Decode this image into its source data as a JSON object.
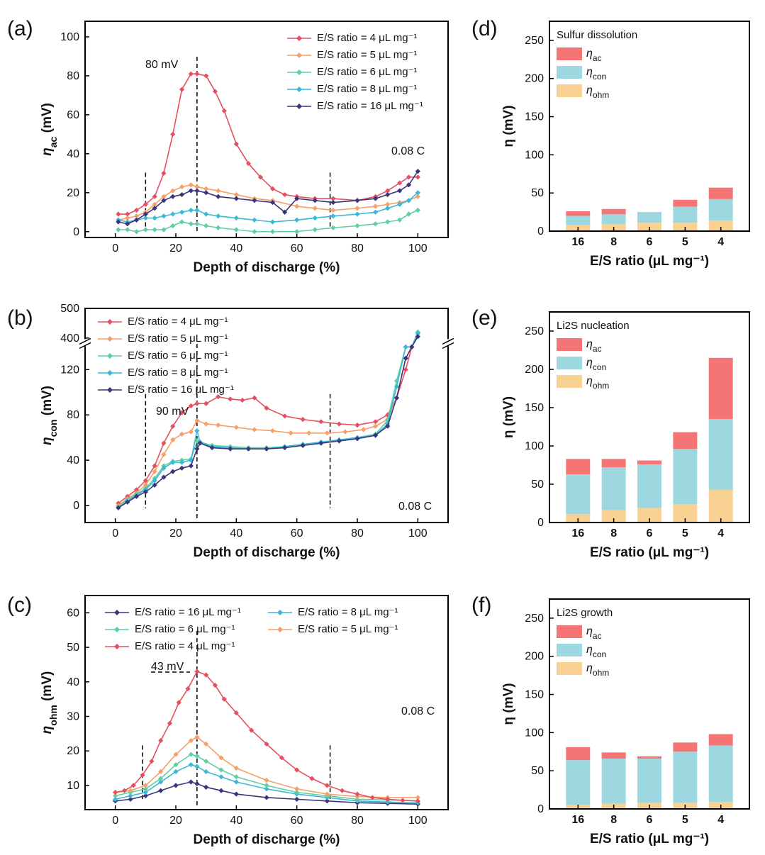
{
  "figure": {
    "colors": {
      "r4": "#e5505f",
      "r5": "#f5a06a",
      "r6": "#5ecfa3",
      "r8": "#3cb8d6",
      "r16": "#3b3579",
      "eta_ac": "#f57474",
      "eta_con": "#9dd7df",
      "eta_ohm": "#f8d193"
    }
  },
  "chart_data": [
    {
      "id": "a",
      "panel_label": "(a)",
      "type": "line",
      "xlabel": "Depth of discharge (%)",
      "ylabel": "η_ac (mV)",
      "ylabel_main": "η",
      "ylabel_sub": "ac",
      "ylabel_unit": " (mV)",
      "xlim": [
        -10,
        110
      ],
      "ylim": [
        -3,
        108
      ],
      "xticks": [
        0,
        20,
        40,
        60,
        80,
        100
      ],
      "yticks": [
        0,
        20,
        40,
        60,
        80,
        100
      ],
      "annotations": [
        {
          "text": "80 mV"
        },
        {
          "text": "0.08 C"
        }
      ],
      "vlines": [
        10,
        27,
        71
      ],
      "legend": [
        "E/S ratio = 4 μL mg⁻¹",
        "E/S ratio = 5 μL mg⁻¹",
        "E/S ratio = 6 μL mg⁻¹",
        "E/S ratio = 8 μL mg⁻¹",
        "E/S ratio = 16 μL mg⁻¹"
      ],
      "series": [
        {
          "name": "E/S ratio = 4 μL mg⁻¹",
          "color": "#e5505f",
          "x": [
            1,
            4,
            7,
            10,
            13,
            16,
            19,
            22,
            25,
            27,
            30,
            33,
            36,
            40,
            44,
            48,
            52,
            56,
            60,
            66,
            72,
            80,
            86,
            90,
            94,
            97,
            100
          ],
          "y": [
            9,
            9,
            11,
            14,
            18,
            30,
            50,
            73,
            81,
            81,
            80,
            72,
            62,
            45,
            35,
            28,
            22,
            19,
            18,
            17,
            17,
            16,
            18,
            21,
            25,
            28,
            28
          ]
        },
        {
          "name": "E/S ratio = 5 μL mg⁻¹",
          "color": "#f5a06a",
          "x": [
            1,
            4,
            7,
            10,
            13,
            16,
            19,
            22,
            25,
            27,
            30,
            34,
            40,
            46,
            52,
            60,
            66,
            72,
            80,
            86,
            90,
            94,
            97,
            100
          ],
          "y": [
            6,
            7,
            8,
            10,
            14,
            18,
            21,
            23,
            24,
            23,
            22,
            21,
            19,
            17,
            16,
            13,
            12,
            11,
            12,
            13,
            14,
            15,
            16,
            18
          ]
        },
        {
          "name": "E/S ratio = 6 μL mg⁻¹",
          "color": "#5ecfa3",
          "x": [
            1,
            4,
            7,
            10,
            13,
            16,
            19,
            22,
            25,
            27,
            30,
            34,
            40,
            46,
            52,
            60,
            66,
            72,
            80,
            86,
            90,
            94,
            97,
            100
          ],
          "y": [
            1,
            1,
            0,
            1,
            1,
            1,
            3,
            5,
            4,
            4,
            3,
            2,
            1,
            0,
            0,
            0,
            1,
            2,
            3,
            4,
            5,
            6,
            9,
            11
          ]
        },
        {
          "name": "E/S ratio = 8 μL mg⁻¹",
          "color": "#3cb8d6",
          "x": [
            1,
            4,
            7,
            10,
            13,
            16,
            19,
            22,
            25,
            27,
            30,
            34,
            40,
            46,
            52,
            60,
            66,
            72,
            80,
            86,
            90,
            94,
            97,
            100
          ],
          "y": [
            6,
            5,
            6,
            7,
            7,
            8,
            9,
            10,
            11,
            11,
            9,
            8,
            7,
            6,
            5,
            6,
            7,
            8,
            9,
            10,
            12,
            14,
            16,
            20
          ]
        },
        {
          "name": "E/S ratio = 16 μL mg⁻¹",
          "color": "#3b3579",
          "x": [
            1,
            4,
            7,
            10,
            13,
            16,
            19,
            22,
            25,
            27,
            30,
            34,
            40,
            46,
            52,
            56,
            60,
            66,
            72,
            80,
            86,
            90,
            94,
            97,
            100
          ],
          "y": [
            5,
            4,
            6,
            9,
            12,
            16,
            18,
            19,
            21,
            21,
            20,
            18,
            17,
            16,
            15,
            10,
            17,
            16,
            15,
            16,
            17,
            19,
            21,
            24,
            31
          ]
        }
      ]
    },
    {
      "id": "b",
      "panel_label": "(b)",
      "type": "line",
      "xlabel": "Depth of discharge (%)",
      "ylabel": "η_con (mV)",
      "ylabel_main": "η",
      "ylabel_sub": "con",
      "ylabel_unit": " (mV)",
      "xlim": [
        -10,
        110
      ],
      "ylim": [
        -15,
        500
      ],
      "axis_break": [
        140,
        370
      ],
      "xticks": [
        0,
        20,
        40,
        60,
        80,
        100
      ],
      "yticks": [
        0,
        40,
        80,
        120,
        400,
        500
      ],
      "annotations": [
        {
          "text": "90 mV"
        },
        {
          "text": "0.08 C"
        }
      ],
      "vlines": [
        10,
        27,
        71
      ],
      "legend": [
        "E/S ratio = 4 μL mg⁻¹",
        "E/S ratio = 5 μL mg⁻¹",
        "E/S ratio = 6 μL mg⁻¹",
        "E/S ratio = 8 μL mg⁻¹",
        "E/S ratio = 16 μL mg⁻¹"
      ],
      "series": [
        {
          "name": "E/S ratio = 4 μL mg⁻¹",
          "color": "#e5505f",
          "x": [
            1,
            4,
            7,
            10,
            13,
            16,
            19,
            22,
            25,
            27,
            30,
            34,
            38,
            42,
            46,
            50,
            56,
            62,
            68,
            74,
            80,
            86,
            90,
            93,
            96,
            98,
            100
          ],
          "y": [
            2,
            8,
            14,
            22,
            35,
            55,
            70,
            82,
            88,
            90,
            90,
            96,
            94,
            93,
            95,
            86,
            79,
            76,
            74,
            72,
            71,
            74,
            80,
            95,
            120,
            290,
            420
          ]
        },
        {
          "name": "E/S ratio = 5 μL mg⁻¹",
          "color": "#f5a06a",
          "x": [
            1,
            4,
            7,
            10,
            13,
            16,
            19,
            22,
            25,
            27,
            30,
            34,
            40,
            46,
            52,
            58,
            64,
            70,
            76,
            82,
            86,
            90,
            93,
            96,
            98,
            100
          ],
          "y": [
            0,
            6,
            11,
            18,
            30,
            45,
            58,
            63,
            65,
            75,
            72,
            71,
            69,
            67,
            66,
            64,
            64,
            64,
            65,
            67,
            70,
            76,
            95,
            130,
            300,
            420
          ]
        },
        {
          "name": "E/S ratio = 6 μL mg⁻¹",
          "color": "#5ecfa3",
          "x": [
            1,
            4,
            7,
            10,
            13,
            16,
            19,
            22,
            25,
            27,
            28,
            32,
            38,
            44,
            50,
            56,
            62,
            68,
            74,
            80,
            86,
            90,
            93,
            96,
            98,
            100
          ],
          "y": [
            -1,
            5,
            10,
            15,
            24,
            35,
            39,
            40,
            41,
            57,
            56,
            53,
            52,
            51,
            51,
            52,
            54,
            56,
            58,
            60,
            63,
            75,
            110,
            150,
            310,
            420
          ]
        },
        {
          "name": "E/S ratio = 8 μL mg⁻¹",
          "color": "#3cb8d6",
          "x": [
            1,
            4,
            7,
            10,
            13,
            16,
            19,
            22,
            25,
            27,
            28,
            32,
            38,
            44,
            50,
            56,
            62,
            68,
            74,
            80,
            86,
            90,
            93,
            96,
            98,
            100
          ],
          "y": [
            -2,
            4,
            9,
            14,
            22,
            33,
            38,
            38,
            40,
            66,
            56,
            52,
            51,
            50,
            50,
            52,
            54,
            56,
            58,
            60,
            62,
            72,
            105,
            140,
            300,
            415
          ]
        },
        {
          "name": "E/S ratio = 16 μL mg⁻¹",
          "color": "#3b3579",
          "x": [
            1,
            4,
            7,
            10,
            13,
            16,
            19,
            22,
            25,
            27,
            28,
            32,
            38,
            44,
            50,
            56,
            62,
            68,
            74,
            80,
            86,
            90,
            93,
            96,
            98,
            100
          ],
          "y": [
            -2,
            3,
            8,
            12,
            18,
            25,
            30,
            33,
            35,
            50,
            55,
            51,
            50,
            50,
            50,
            51,
            53,
            55,
            57,
            59,
            62,
            70,
            95,
            130,
            290,
            405
          ]
        }
      ]
    },
    {
      "id": "c",
      "panel_label": "(c)",
      "type": "line",
      "xlabel": "Depth of discharge (%)",
      "ylabel": "η_ohm (mV)",
      "ylabel_main": "η",
      "ylabel_sub": "ohm",
      "ylabel_unit": " (mV)",
      "xlim": [
        -10,
        110
      ],
      "ylim": [
        3,
        65
      ],
      "xticks": [
        0,
        20,
        40,
        60,
        80,
        100
      ],
      "yticks": [
        10,
        20,
        30,
        40,
        50,
        60
      ],
      "annotations": [
        {
          "text": "43 mV"
        },
        {
          "text": "0.08 C"
        }
      ],
      "vlines": [
        9,
        27,
        71
      ],
      "legend": [
        "E/S ratio = 16 μL mg⁻¹",
        "E/S ratio = 8 μL mg⁻¹",
        "E/S ratio = 6 μL mg⁻¹",
        "E/S ratio = 5 μL mg⁻¹",
        "E/S ratio = 4 μL mg⁻¹"
      ],
      "series": [
        {
          "name": "E/S ratio = 16 μL mg⁻¹",
          "color": "#3b3579",
          "x": [
            0,
            5,
            10,
            15,
            20,
            25,
            27,
            30,
            35,
            40,
            50,
            60,
            70,
            80,
            90,
            100
          ],
          "y": [
            5.5,
            6,
            7,
            8.5,
            10,
            11,
            10.5,
            9.5,
            8.5,
            7.5,
            6.5,
            6,
            5.5,
            5,
            4.8,
            4.6
          ]
        },
        {
          "name": "E/S ratio = 8 μL mg⁻¹",
          "color": "#3cb8d6",
          "x": [
            0,
            5,
            10,
            15,
            20,
            25,
            27,
            30,
            35,
            40,
            50,
            60,
            70,
            80,
            90,
            100
          ],
          "y": [
            6,
            7,
            8,
            11,
            14,
            16,
            15.5,
            14,
            12.5,
            11,
            9,
            7.5,
            6.5,
            5.5,
            5.2,
            5
          ]
        },
        {
          "name": "E/S ratio = 6 μL mg⁻¹",
          "color": "#5ecfa3",
          "x": [
            0,
            5,
            10,
            15,
            20,
            25,
            27,
            30,
            35,
            40,
            50,
            60,
            70,
            80,
            90,
            100
          ],
          "y": [
            7,
            8,
            9,
            12,
            16,
            19,
            18.5,
            17,
            14.5,
            12.5,
            10,
            8,
            7,
            6,
            5.8,
            5.5
          ]
        },
        {
          "name": "E/S ratio = 5 μL mg⁻¹",
          "color": "#f5a06a",
          "x": [
            0,
            5,
            10,
            15,
            20,
            25,
            27,
            30,
            35,
            40,
            50,
            60,
            70,
            80,
            90,
            100
          ],
          "y": [
            8,
            8.5,
            10,
            14,
            19,
            23,
            24,
            22,
            18,
            15,
            11.5,
            9,
            7.5,
            6.8,
            6.5,
            6.5
          ]
        },
        {
          "name": "E/S ratio = 4 μL mg⁻¹",
          "color": "#e5505f",
          "x": [
            0,
            3,
            6,
            9,
            12,
            15,
            18,
            21,
            24,
            27,
            30,
            33,
            36,
            40,
            45,
            50,
            55,
            60,
            65,
            70,
            75,
            80,
            85,
            90,
            95,
            100
          ],
          "y": [
            8,
            8.5,
            10,
            13,
            17,
            23,
            28,
            34,
            38,
            43,
            42,
            39,
            35,
            31,
            26,
            22,
            18,
            14.5,
            12,
            10,
            8.5,
            7.5,
            6.5,
            6,
            5.7,
            5.5
          ]
        }
      ]
    },
    {
      "id": "d",
      "panel_label": "(d)",
      "type": "bar",
      "stacked": true,
      "title": "Sulfur dissolution",
      "xlabel": "E/S ratio (μL mg⁻¹)",
      "ylabel": "η (mV)",
      "ylim": [
        0,
        275
      ],
      "yticks": [
        0,
        50,
        100,
        150,
        200,
        250
      ],
      "categories": [
        "16",
        "8",
        "6",
        "5",
        "4"
      ],
      "legend": [
        "η_ac",
        "η_con",
        "η_ohm"
      ],
      "series": [
        {
          "name": "η_ohm",
          "color": "#f8d193",
          "values": [
            8,
            9,
            11,
            11,
            14
          ]
        },
        {
          "name": "η_con",
          "color": "#9dd7df",
          "values": [
            12,
            13,
            14,
            21,
            28
          ]
        },
        {
          "name": "η_ac",
          "color": "#f57474",
          "values": [
            6,
            7,
            0,
            9,
            15
          ]
        }
      ]
    },
    {
      "id": "e",
      "panel_label": "(e)",
      "type": "bar",
      "stacked": true,
      "title": "Li2S nucleation",
      "xlabel": "E/S ratio (μL mg⁻¹)",
      "ylabel": "η (mV)",
      "ylim": [
        0,
        275
      ],
      "yticks": [
        0,
        50,
        100,
        150,
        200,
        250
      ],
      "categories": [
        "16",
        "8",
        "6",
        "5",
        "4"
      ],
      "legend": [
        "η_ac",
        "η_con",
        "η_ohm"
      ],
      "series": [
        {
          "name": "η_ohm",
          "color": "#f8d193",
          "values": [
            11,
            16,
            19,
            24,
            43
          ]
        },
        {
          "name": "η_con",
          "color": "#9dd7df",
          "values": [
            52,
            56,
            57,
            72,
            92
          ]
        },
        {
          "name": "η_ac",
          "color": "#f57474",
          "values": [
            20,
            11,
            5,
            22,
            80
          ]
        }
      ]
    },
    {
      "id": "f",
      "panel_label": "(f)",
      "type": "bar",
      "stacked": true,
      "title": "Li2S growth",
      "xlabel": "E/S ratio (μL mg⁻¹)",
      "ylabel": "η (mV)",
      "ylim": [
        0,
        275
      ],
      "yticks": [
        0,
        50,
        100,
        150,
        200,
        250
      ],
      "categories": [
        "16",
        "8",
        "6",
        "5",
        "4"
      ],
      "legend": [
        "η_ac",
        "η_con",
        "η_ohm"
      ],
      "series": [
        {
          "name": "η_ohm",
          "color": "#f8d193",
          "values": [
            5,
            7,
            8,
            8,
            9
          ]
        },
        {
          "name": "η_con",
          "color": "#9dd7df",
          "values": [
            59,
            59,
            58,
            67,
            74
          ]
        },
        {
          "name": "η_ac",
          "color": "#f57474",
          "values": [
            17,
            8,
            3,
            12,
            15
          ]
        }
      ]
    }
  ]
}
